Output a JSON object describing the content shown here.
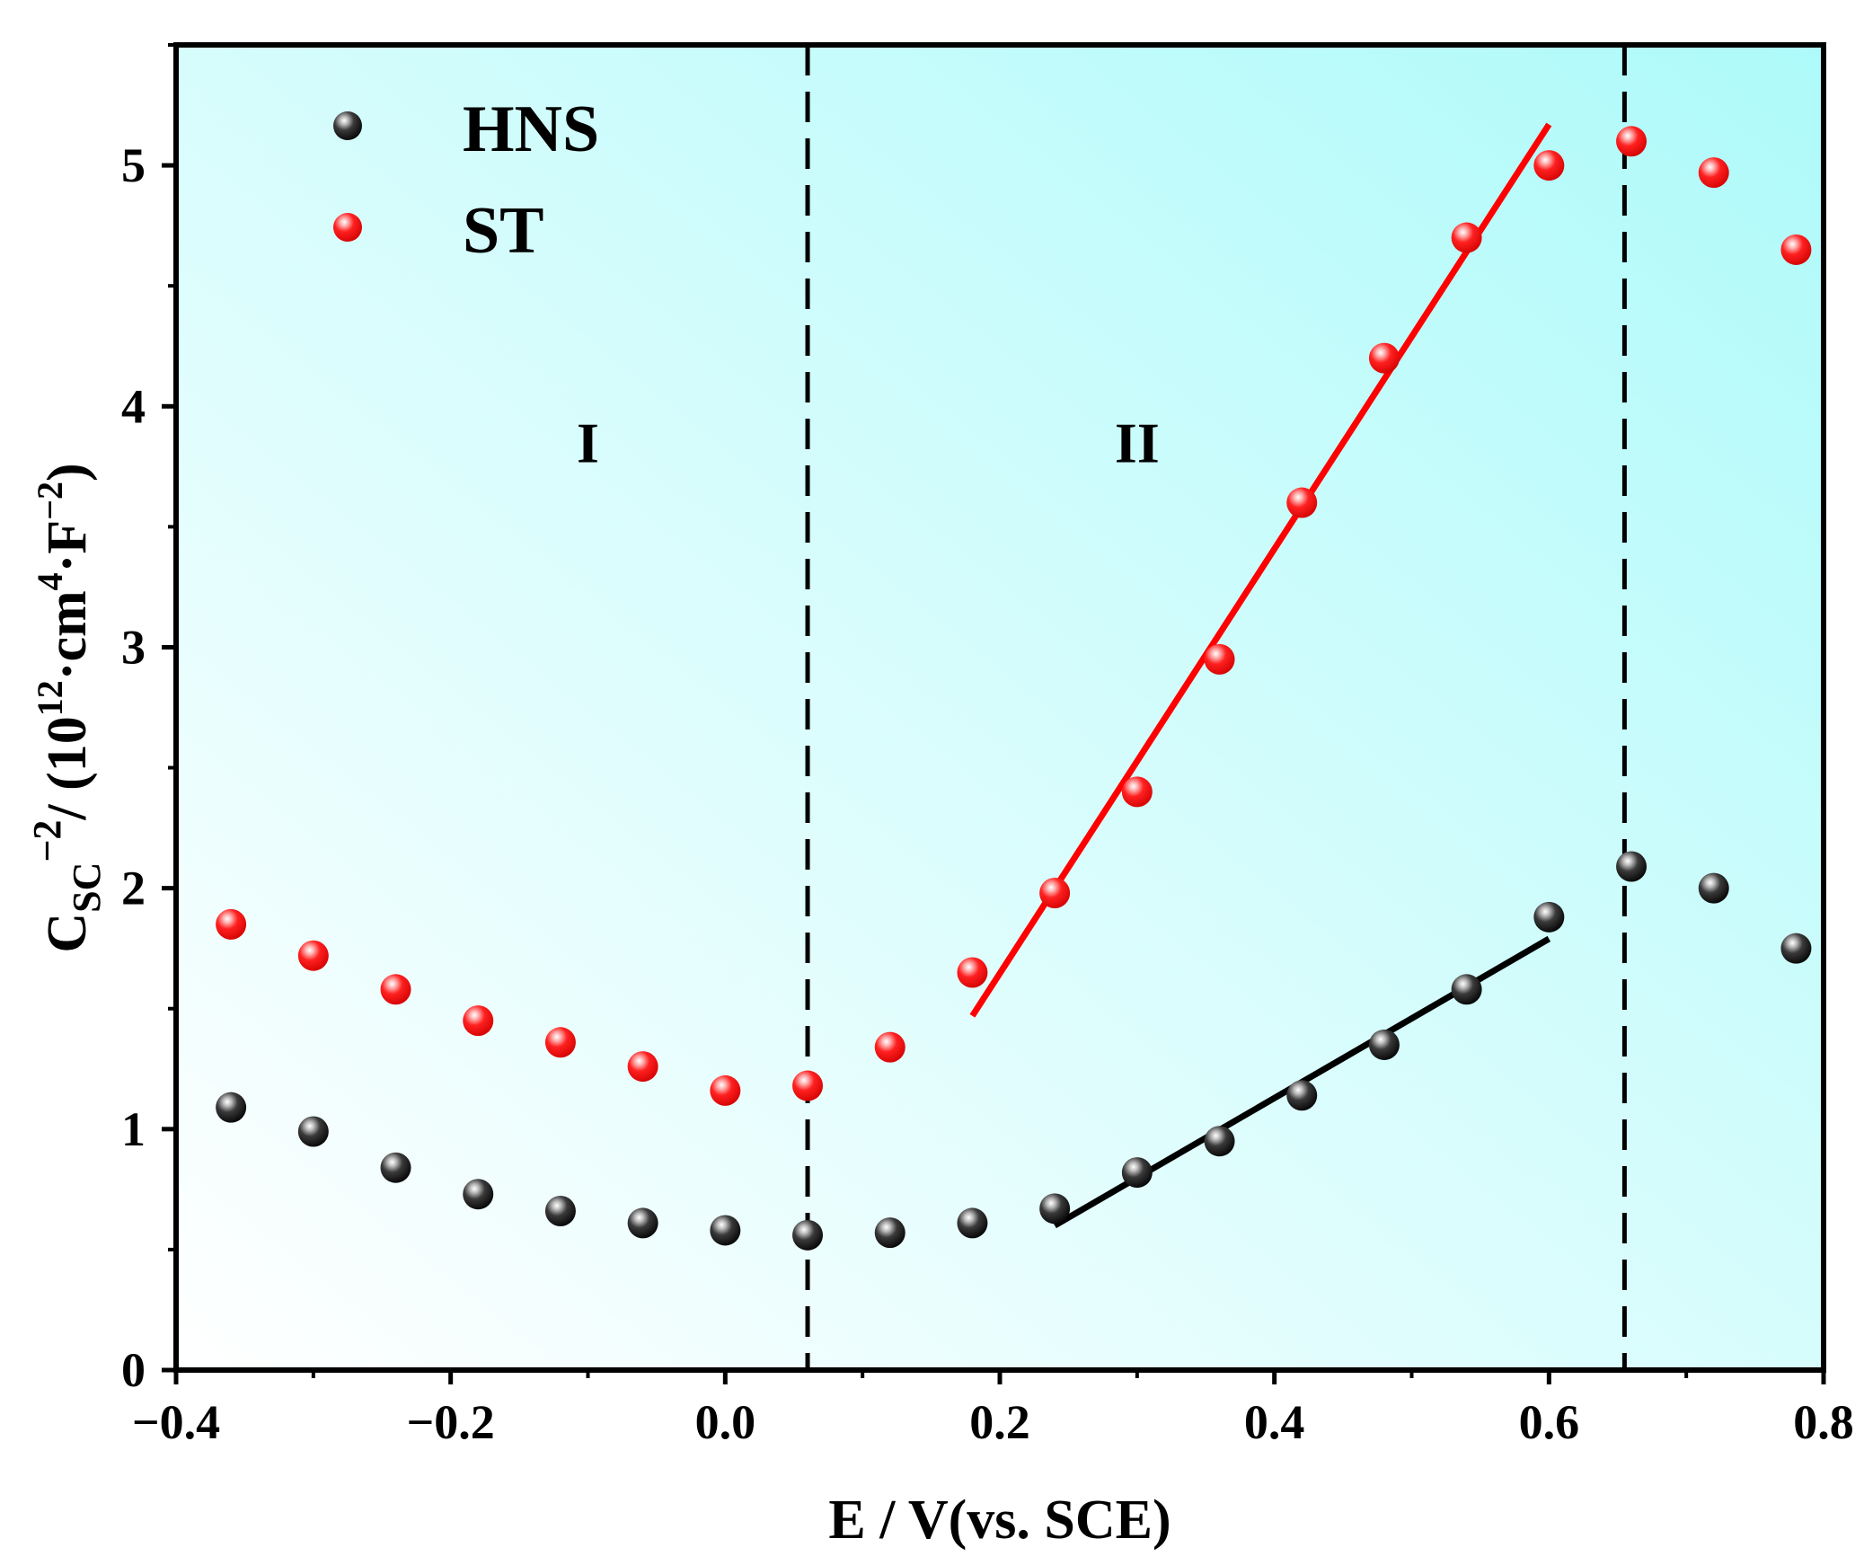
{
  "chart_data": {
    "type": "scatter",
    "title": "",
    "xlabel": "E / V(vs. SCE)",
    "ylabel": {
      "base": "C",
      "base_sub": "SC",
      "base_sup": "−2",
      "unit_open": "/ (10",
      "unit_exp1": "12",
      "unit_mid": "·cm",
      "unit_exp2": "4",
      "unit_mid2": "·F",
      "unit_exp3": "−2",
      "unit_close": ")"
    },
    "xlim": [
      -0.4,
      0.8
    ],
    "ylim": [
      0,
      5.5
    ],
    "xticks": [
      -0.4,
      -0.2,
      0.0,
      0.2,
      0.4,
      0.6,
      0.8
    ],
    "xtick_labels": [
      "−0.4",
      "−0.2",
      "0.0",
      "0.2",
      "0.4",
      "0.6",
      "0.8"
    ],
    "yticks": [
      0,
      1,
      2,
      3,
      4,
      5
    ],
    "ytick_labels": [
      "0",
      "1",
      "2",
      "3",
      "4",
      "5"
    ],
    "legend_position": "top-left",
    "background_gradient": [
      "#ffffff",
      "#aefafa"
    ],
    "vlines": [
      0.06,
      0.655
    ],
    "regions": [
      {
        "label": "I",
        "x": -0.1,
        "y": 3.85
      },
      {
        "label": "II",
        "x": 0.3,
        "y": 3.85
      }
    ],
    "series": [
      {
        "name": "HNS",
        "color": "#111111",
        "x": [
          -0.36,
          -0.3,
          -0.24,
          -0.18,
          -0.12,
          -0.06,
          0.0,
          0.06,
          0.12,
          0.18,
          0.24,
          0.3,
          0.36,
          0.42,
          0.48,
          0.54,
          0.6,
          0.66,
          0.72,
          0.78
        ],
        "y": [
          1.09,
          0.99,
          0.84,
          0.73,
          0.66,
          0.61,
          0.58,
          0.56,
          0.57,
          0.61,
          0.67,
          0.82,
          0.95,
          1.14,
          1.35,
          1.58,
          1.88,
          2.09,
          2.0,
          1.75
        ],
        "fit": {
          "x": [
            0.24,
            0.6
          ],
          "y": [
            0.6,
            1.79
          ],
          "color": "#000000"
        }
      },
      {
        "name": "ST",
        "color": "#ff1010",
        "x": [
          -0.36,
          -0.3,
          -0.24,
          -0.18,
          -0.12,
          -0.06,
          0.0,
          0.06,
          0.12,
          0.18,
          0.24,
          0.3,
          0.36,
          0.42,
          0.48,
          0.54,
          0.6,
          0.66,
          0.72,
          0.78
        ],
        "y": [
          1.85,
          1.72,
          1.58,
          1.45,
          1.36,
          1.26,
          1.16,
          1.18,
          1.34,
          1.65,
          1.98,
          2.4,
          2.95,
          3.6,
          4.2,
          4.7,
          5.0,
          5.1,
          4.97,
          4.65
        ],
        "fit": {
          "x": [
            0.18,
            0.6
          ],
          "y": [
            1.47,
            5.17
          ],
          "color": "#ff0000"
        }
      }
    ]
  }
}
